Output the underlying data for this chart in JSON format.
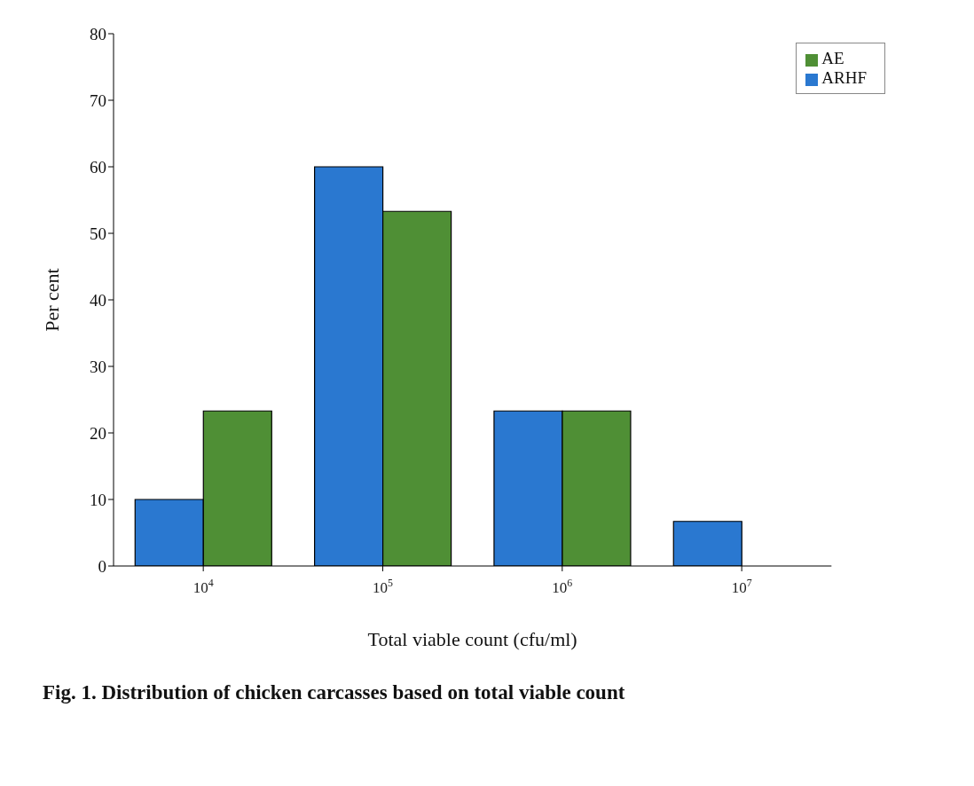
{
  "chart_data": {
    "type": "bar",
    "title": "Fig. 1. Distribution of chicken carcasses based on total viable count",
    "xlabel": "Total viable count (cfu/ml)",
    "ylabel": "Per cent",
    "categories": [
      "10$^{4}$",
      "10$^{5}$",
      "10$^{6}$",
      "10$^{7}$"
    ],
    "series": [
      {
        "name": "ARHF",
        "color": "#2a78d0",
        "values": [
          10,
          60,
          23.3,
          6.7
        ]
      },
      {
        "name": "AE",
        "color": "#4f8f35",
        "values": [
          23.3,
          53.3,
          23.3,
          0
        ]
      }
    ],
    "ylim": [
      0,
      80
    ],
    "yticks": [
      0,
      10,
      20,
      30,
      40,
      50,
      60,
      70,
      80
    ],
    "grid": false,
    "legend": "top right"
  }
}
